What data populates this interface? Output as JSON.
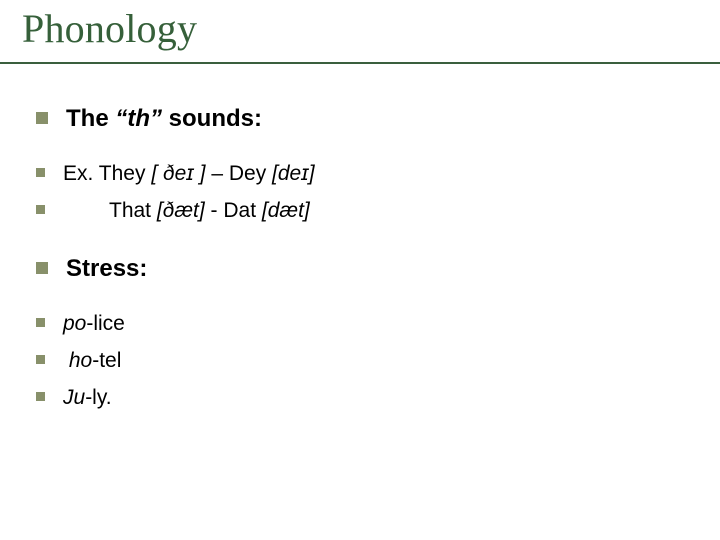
{
  "colors": {
    "title": "#36603a",
    "rule": "#3a5f3e",
    "bullet": "#88906a",
    "text": "#000000",
    "background": "#ffffff"
  },
  "title": "Phonology",
  "items": [
    {
      "size": "lg",
      "bullet": "lg",
      "gap": "lg",
      "spans": [
        {
          "text": "The ",
          "bold": true
        },
        {
          "text": "“th”",
          "bold": true,
          "italic": true
        },
        {
          "text": " sounds:",
          "bold": true
        }
      ]
    },
    {
      "size": "md",
      "bullet": "sm",
      "gap": "sm",
      "spans": [
        {
          "text": "Ex. They "
        },
        {
          "text": "[ ðeɪ ]",
          "italic": true
        },
        {
          "text": "  – Dey "
        },
        {
          "text": "[deɪ]",
          "italic": true
        }
      ]
    },
    {
      "size": "md",
      "bullet": "sm",
      "gap": "xl",
      "indent": true,
      "spans": [
        {
          "text": "That "
        },
        {
          "text": "[ðæt]",
          "italic": true
        },
        {
          "text": "  - Dat "
        },
        {
          "text": "[dæt]",
          "italic": true
        }
      ]
    },
    {
      "size": "lg",
      "bullet": "lg",
      "gap": "lg",
      "spans": [
        {
          "text": "Stress:",
          "bold": true
        }
      ]
    },
    {
      "size": "md",
      "bullet": "sm",
      "gap": "sm",
      "spans": [
        {
          "text": "po",
          "italic": true
        },
        {
          "text": "-lice"
        }
      ]
    },
    {
      "size": "md",
      "bullet": "sm",
      "gap": "sm",
      "leading_space": true,
      "spans": [
        {
          "text": "ho",
          "italic": true
        },
        {
          "text": "-tel"
        }
      ]
    },
    {
      "size": "md",
      "bullet": "sm",
      "gap": "sm",
      "spans": [
        {
          "text": "Ju",
          "italic": true
        },
        {
          "text": "-ly."
        }
      ]
    }
  ]
}
